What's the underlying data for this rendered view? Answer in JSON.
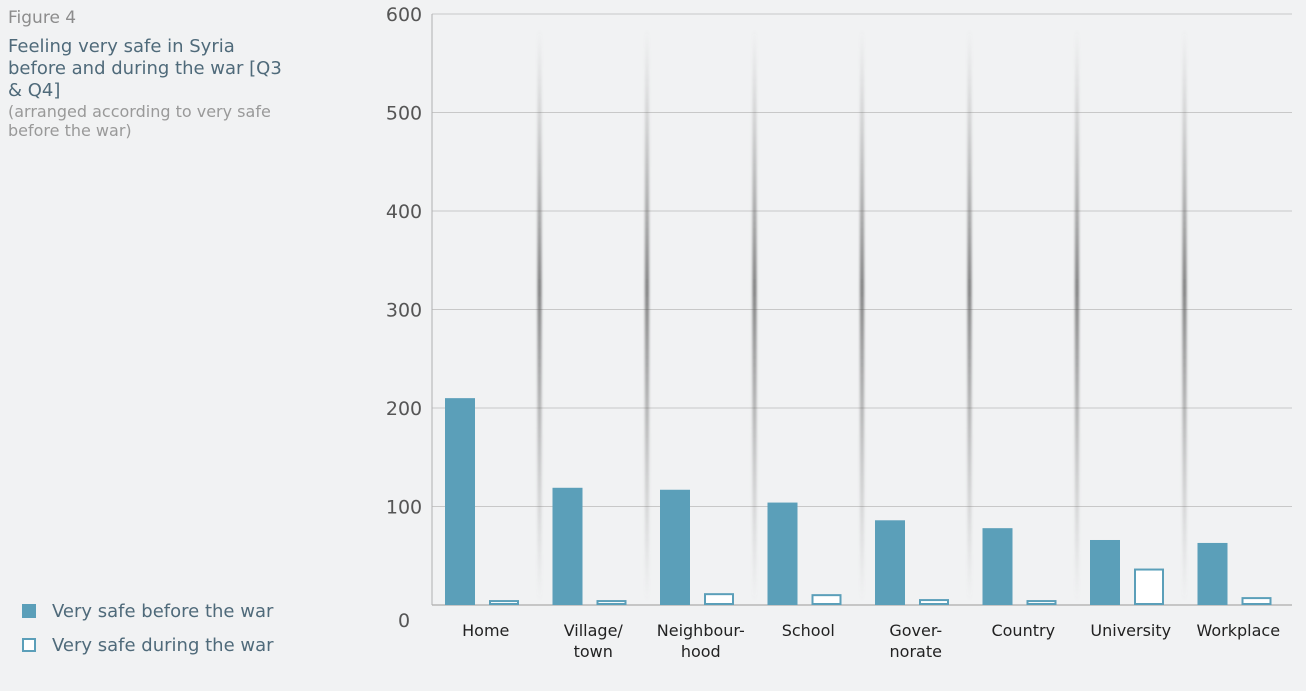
{
  "figure_label": "Figure 4",
  "title": "Feeling very safe in Syria before and during the war [Q3 & Q4]",
  "subtitle": "(arranged according to very safe before the war)",
  "colors": {
    "before": "#5b9fb9",
    "during_fill": "#ffffff",
    "during_stroke": "#5b9fb9",
    "grid": "#c8c8c8"
  },
  "legend": [
    {
      "label": "Very safe before the war",
      "style": "filled"
    },
    {
      "label": "Very safe during the war",
      "style": "outline"
    }
  ],
  "chart_data": {
    "type": "bar",
    "categories": [
      "Home",
      "Village/ town",
      "Neighbour- hood",
      "School",
      "Gover- norate",
      "Country",
      "University",
      "Workplace"
    ],
    "category_lines": [
      [
        "Home"
      ],
      [
        "Village/",
        "town"
      ],
      [
        "Neighbour-",
        "hood"
      ],
      [
        "School"
      ],
      [
        "Gover-",
        "norate"
      ],
      [
        "Country"
      ],
      [
        "University"
      ],
      [
        "Workplace"
      ]
    ],
    "series": [
      {
        "name": "Very safe before the war",
        "values": [
          210,
          119,
          117,
          104,
          86,
          78,
          66,
          63
        ]
      },
      {
        "name": "Very safe during the war",
        "values": [
          4,
          4,
          11,
          10,
          5,
          4,
          36,
          7
        ]
      }
    ],
    "ylim": [
      0,
      600
    ],
    "yticks": [
      0,
      100,
      200,
      300,
      400,
      500,
      600
    ],
    "grid": true,
    "legend_position": "bottom-left"
  }
}
